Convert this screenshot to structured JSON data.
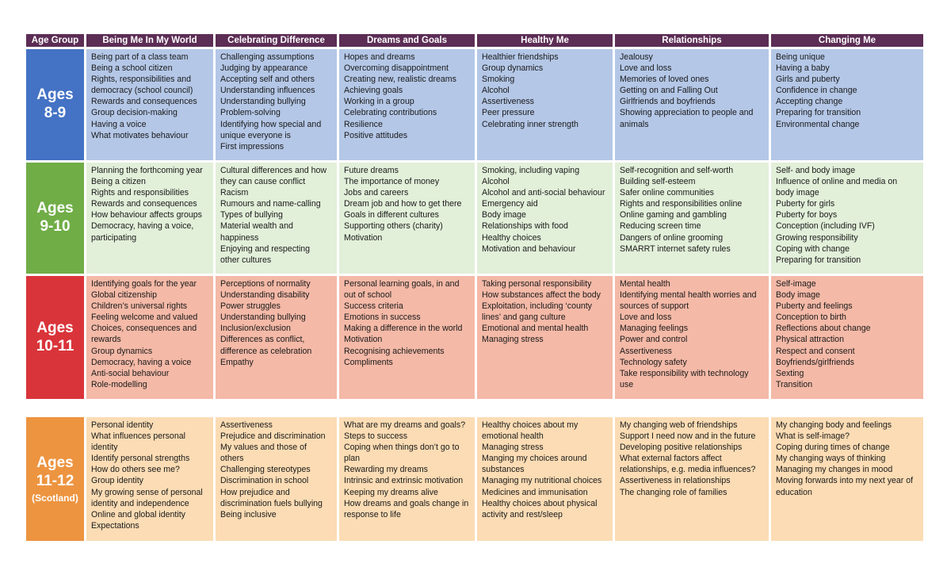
{
  "headers": [
    "Age Group",
    "Being Me In My World",
    "Celebrating Difference",
    "Dreams and Goals",
    "Healthy Me",
    "Relationships",
    "Changing Me"
  ],
  "colors": {
    "header_bg": "#5c2d55",
    "rows": [
      {
        "age_bg": "#4472c4",
        "cell_bg": "#b4c7e7"
      },
      {
        "age_bg": "#70ad47",
        "cell_bg": "#e2efd9"
      },
      {
        "age_bg": "#d9343a",
        "cell_bg": "#f4b9a7"
      },
      {
        "age_bg": "#ed9440",
        "cell_bg": "#fbdcb4"
      }
    ]
  },
  "rows": [
    {
      "age_line1": "Ages",
      "age_line2": "8-9",
      "age_sub": "",
      "cells": [
        [
          "Being part of a class team",
          "Being a school citizen",
          "Rights, responsibilities and",
          "democracy (school council)",
          "Rewards and consequences",
          "Group decision-making",
          "Having a voice",
          "What motivates behaviour"
        ],
        [
          "Challenging assumptions",
          "Judging by appearance",
          "Accepting self and others",
          "Understanding influences",
          "Understanding bullying",
          "Problem-solving",
          "Identifying how special and",
          "unique everyone is",
          "First impressions"
        ],
        [
          "Hopes and dreams",
          "Overcoming disappointment",
          "Creating new, realistic dreams",
          "Achieving goals",
          "Working in a group",
          "Celebrating contributions",
          "Resilience",
          "Positive attitudes"
        ],
        [
          "Healthier friendships",
          "Group dynamics",
          "Smoking",
          "Alcohol",
          "Assertiveness",
          "Peer pressure",
          "Celebrating inner strength"
        ],
        [
          "Jealousy",
          "Love and loss",
          "Memories of loved ones",
          "Getting on and Falling Out",
          "Girlfriends and boyfriends",
          "Showing appreciation to people and",
          "animals"
        ],
        [
          "Being unique",
          "Having a baby",
          "Girls and puberty",
          "Confidence in change",
          "Accepting change",
          "Preparing for transition",
          "Environmental change"
        ]
      ]
    },
    {
      "age_line1": "Ages",
      "age_line2": "9-10",
      "age_sub": "",
      "cells": [
        [
          "Planning the forthcoming year",
          "Being a citizen",
          "Rights and responsibilities",
          "Rewards and consequences",
          "How behaviour affects groups",
          "Democracy, having a voice,",
          "participating"
        ],
        [
          "Cultural differences and how",
          "they can cause conflict",
          "Racism",
          "Rumours and name-calling",
          "Types of bullying",
          "Material wealth and",
          "happiness",
          "Enjoying and respecting",
          "other cultures"
        ],
        [
          "Future dreams",
          "The importance of money",
          "Jobs and careers",
          "Dream job and how to get there",
          "Goals in different cultures",
          "Supporting others (charity)",
          "Motivation"
        ],
        [
          "Smoking, including vaping",
          "Alcohol",
          "Alcohol and anti-social behaviour",
          "Emergency aid",
          "Body image",
          "Relationships with food",
          "Healthy choices",
          "Motivation and behaviour"
        ],
        [
          "Self-recognition and self-worth",
          "Building self-esteem",
          "Safer online communities",
          "Rights and responsibilities online",
          "Online gaming and gambling",
          "Reducing screen time",
          "Dangers of online grooming",
          "SMARRT internet safety rules"
        ],
        [
          "Self- and body image",
          "Influence of online and media on",
          "body image",
          "Puberty for girls",
          "Puberty for boys",
          "Conception (including IVF)",
          "Growing responsibility",
          "Coping with change",
          "Preparing for transition"
        ]
      ]
    },
    {
      "age_line1": "Ages",
      "age_line2": "10-11",
      "age_sub": "",
      "cells": [
        [
          "Identifying goals for the year",
          "Global citizenship",
          "Children’s universal rights",
          "Feeling welcome and valued",
          "Choices, consequences and",
          "rewards",
          "Group dynamics",
          "Democracy, having a voice",
          "Anti-social behaviour",
          "Role-modelling"
        ],
        [
          "Perceptions of normality",
          "Understanding disability",
          "Power struggles",
          "Understanding bullying",
          "Inclusion/exclusion",
          "Differences as conflict,",
          "difference as celebration",
          "Empathy"
        ],
        [
          "Personal learning goals, in and",
          "out of school",
          "Success criteria",
          "Emotions in success",
          "Making a difference in the world",
          "Motivation",
          "Recognising achievements",
          "Compliments"
        ],
        [
          "Taking personal responsibility",
          "How substances affect the body",
          "Exploitation, including ‘county",
          "lines’ and gang culture",
          "Emotional and mental health",
          "Managing stress"
        ],
        [
          "Mental health",
          "Identifying mental health worries and",
          "sources of support",
          "Love and loss",
          "Managing feelings",
          "Power and control",
          "Assertiveness",
          "Technology safety",
          "Take responsibility with technology",
          "use"
        ],
        [
          "Self-image",
          "Body image",
          "Puberty and feelings",
          "Conception to birth",
          "Reflections about change",
          "Physical attraction",
          "Respect and consent",
          "Boyfriends/girlfriends",
          "Sexting",
          "Transition"
        ]
      ]
    },
    {
      "age_line1": "Ages",
      "age_line2": "11-12",
      "age_sub": "(Scotland)",
      "cells": [
        [
          "Personal identity",
          "What influences personal",
          "identity",
          "Identify personal strengths",
          "How do others see me?",
          "Group identity",
          "My growing sense of personal",
          "identity and independence",
          "Online and global identity",
          "Expectations"
        ],
        [
          "Assertiveness",
          "Prejudice and discrimination",
          "My values and those of",
          "others",
          "Challenging stereotypes",
          "Discrimination in school",
          "How prejudice and",
          "discrimination fuels bullying",
          "Being inclusive"
        ],
        [
          "What are my dreams and goals?",
          "Steps to success",
          "Coping when things don’t go to",
          "plan",
          "Rewarding my dreams",
          "Intrinsic and extrinsic motivation",
          "Keeping my dreams alive",
          "How dreams and goals change in",
          "response to life"
        ],
        [
          "Healthy choices about my",
          "emotional health",
          "Managing stress",
          "Manging my choices around",
          "substances",
          "Managing my nutritional choices",
          "Medicines and immunisation",
          "Healthy choices about physical",
          "activity and rest/sleep"
        ],
        [
          "My changing web of friendships",
          "Support I need now and in the future",
          "Developing positive relationships",
          "What external factors affect",
          "relationships, e.g. media influences?",
          "Assertiveness in relationships",
          "The changing role of families"
        ],
        [
          "My changing body and feelings",
          "What is self-image?",
          "Coping during times of change",
          "My changing ways of thinking",
          "Managing my changes in mood",
          "Moving forwards into my next year of",
          "education"
        ]
      ]
    }
  ]
}
